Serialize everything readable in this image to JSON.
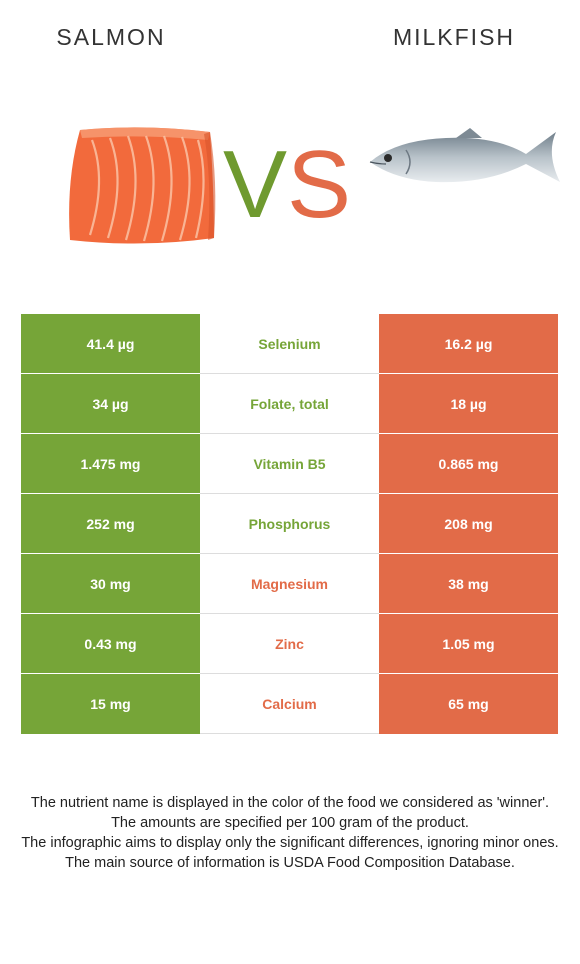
{
  "header": {
    "left_food": "SALMON",
    "right_food": "MILKFISH",
    "vs_v": "V",
    "vs_s": "S"
  },
  "colors": {
    "left_winner": "#76a538",
    "right_winner": "#e26b48",
    "salmon_flesh": "#f26a3c",
    "fish_body": "#9aa6ae"
  },
  "icons": {
    "left": "salmon-fillet-icon",
    "right": "milkfish-icon"
  },
  "chart_data": {
    "type": "table",
    "columns": [
      "Salmon",
      "Nutrient",
      "Milkfish"
    ],
    "rows": [
      {
        "nutrient": "Selenium",
        "left": "41.4 µg",
        "right": "16.2 µg",
        "winner": "left"
      },
      {
        "nutrient": "Folate, total",
        "left": "34 µg",
        "right": "18 µg",
        "winner": "left"
      },
      {
        "nutrient": "Vitamin B5",
        "left": "1.475 mg",
        "right": "0.865 mg",
        "winner": "left"
      },
      {
        "nutrient": "Phosphorus",
        "left": "252 mg",
        "right": "208 mg",
        "winner": "left"
      },
      {
        "nutrient": "Magnesium",
        "left": "30 mg",
        "right": "38 mg",
        "winner": "right"
      },
      {
        "nutrient": "Zinc",
        "left": "0.43 mg",
        "right": "1.05 mg",
        "winner": "right"
      },
      {
        "nutrient": "Calcium",
        "left": "15 mg",
        "right": "65 mg",
        "winner": "right"
      }
    ]
  },
  "footnote": [
    "The nutrient name is displayed in the color of the food we considered as 'winner'.",
    "The amounts are specified per 100 gram of the product.",
    "The infographic aims to display only the significant differences, ignoring minor ones.",
    "The main source of information is USDA Food Composition Database."
  ]
}
